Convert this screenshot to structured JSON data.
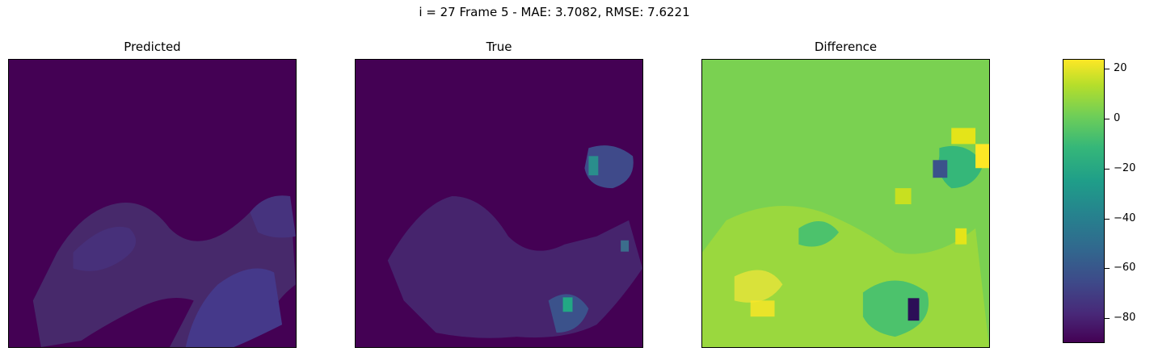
{
  "suptitle": "i = 27 Frame 5 - MAE: 3.7082, RMSE: 7.6221",
  "chart_data": {
    "type": "heatmap",
    "panels": [
      {
        "title": "Predicted",
        "description_colormap": "viridis"
      },
      {
        "title": "True",
        "description_colormap": "viridis"
      },
      {
        "title": "Difference",
        "description_colormap": "viridis"
      }
    ],
    "colorbar": {
      "range": [
        -90,
        24
      ],
      "ticks": [
        20,
        0,
        -20,
        -40,
        -60,
        -80
      ],
      "tick_labels": [
        "20",
        "0",
        "−20",
        "−40",
        "−60",
        "−80"
      ]
    },
    "axes_ticks": "none"
  },
  "colors": {
    "dark": "#440154",
    "purple": "#472d7b",
    "blue": "#3b528b",
    "teal": "#21918c",
    "green": "#5ec962",
    "lightgreen": "#7ad151",
    "yellowgreen": "#b5de2b",
    "yellow": "#fde725"
  }
}
